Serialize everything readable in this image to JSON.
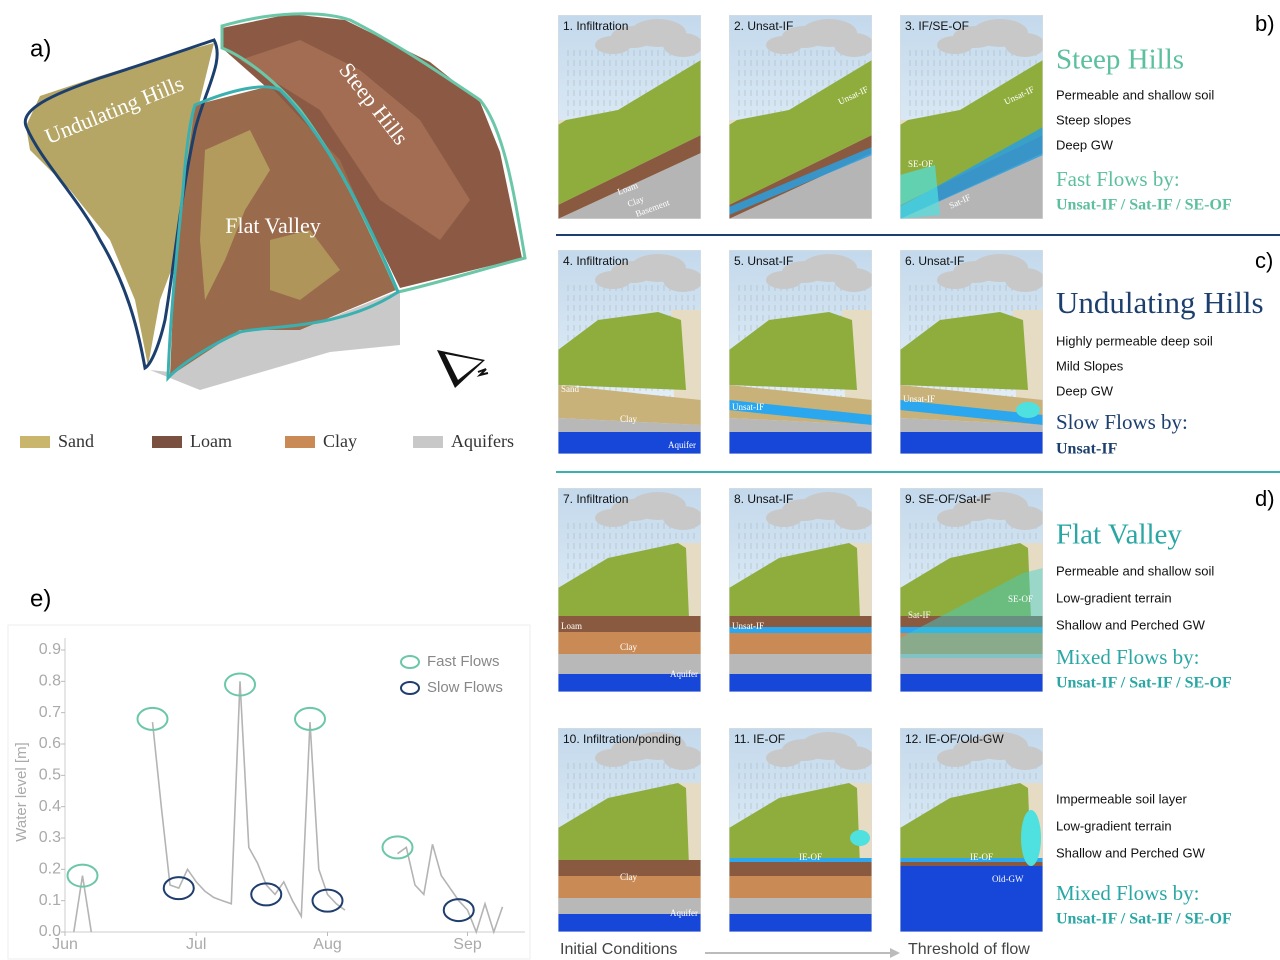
{
  "panel_a": {
    "label": "a)",
    "regions": {
      "undulating": "Undulating Hills",
      "steep": "Steep Hills",
      "valley": "Flat Valley"
    },
    "legend": [
      {
        "name": "Sand",
        "color": "#c9b56c"
      },
      {
        "name": "Loam",
        "color": "#7a5140"
      },
      {
        "name": "Clay",
        "color": "#c98a55"
      },
      {
        "name": "Aquifers",
        "color": "#c8c8c8"
      }
    ]
  },
  "rows": [
    {
      "label": "b)",
      "title": "Steep Hills",
      "color": "#5cbf9f",
      "properties": [
        "Permeable and shallow soil",
        "Steep slopes",
        "Deep GW"
      ],
      "flows_title": "Fast Flows by:",
      "flows": "Unsat-IF / Sat-IF / SE-OF",
      "panels": [
        {
          "title": "1. Infiltration",
          "labels": [
            "Loam",
            "Clay",
            "Basement"
          ]
        },
        {
          "title": "2. Unsat-IF",
          "labels": [
            "Unsat-IF"
          ]
        },
        {
          "title": "3. IF/SE-OF",
          "labels": [
            "SE-OF",
            "Unsat-IF",
            "Sat-IF"
          ]
        }
      ]
    },
    {
      "label": "c)",
      "title": "Undulating Hills",
      "color": "#1d3f6e",
      "properties": [
        "Highly permeable deep soil",
        "Mild Slopes",
        "Deep GW"
      ],
      "flows_title": "Slow Flows by:",
      "flows": "Unsat-IF",
      "panels": [
        {
          "title": "4. Infiltration",
          "labels": [
            "Sand",
            "Clay",
            "Aquifer"
          ]
        },
        {
          "title": "5. Unsat-IF",
          "labels": [
            "Unsat-IF"
          ]
        },
        {
          "title": "6. Unsat-IF",
          "labels": [
            "Unsat-IF"
          ]
        }
      ]
    },
    {
      "label": "d)",
      "title": "Flat Valley",
      "color": "#2aa7a5",
      "properties": [
        "Permeable and shallow soil",
        "Low-gradient terrain",
        "Shallow and Perched GW"
      ],
      "flows_title": "Mixed Flows by:",
      "flows": "Unsat-IF / Sat-IF / SE-OF",
      "panels": [
        {
          "title": "7. Infiltration",
          "labels": [
            "Loam",
            "Clay",
            "Aquifer"
          ]
        },
        {
          "title": "8. Unsat-IF",
          "labels": [
            "Unsat-IF"
          ]
        },
        {
          "title": "9. SE-OF/Sat-IF",
          "labels": [
            "Sat-IF",
            "SE-OF"
          ]
        }
      ]
    },
    {
      "color": "#2aa7a5",
      "properties": [
        "Impermeable soil layer",
        "Low-gradient terrain",
        "Shallow and Perched GW"
      ],
      "flows_title": "Mixed Flows by:",
      "flows": "Unsat-IF / Sat-IF / SE-OF",
      "panels": [
        {
          "title": "10. Infiltration/ponding",
          "labels": [
            "Clay",
            "Aquifer"
          ]
        },
        {
          "title": "11. IE-OF",
          "labels": [
            "IE-OF"
          ]
        },
        {
          "title": "12. IE-OF/Old-GW",
          "labels": [
            "IE-OF",
            "Old-GW"
          ]
        }
      ]
    }
  ],
  "progression": {
    "start": "Initial Conditions",
    "end": "Threshold of flow"
  },
  "chart_data": {
    "type": "line",
    "panel_label": "e)",
    "y_label": "Water level [m]",
    "color": "#b4b4b4",
    "categories": [
      "Jun",
      null,
      null,
      null,
      null,
      null,
      null,
      null,
      null,
      null,
      null,
      null,
      null,
      null,
      null,
      "Jul",
      null,
      null,
      null,
      null,
      null,
      null,
      null,
      null,
      null,
      null,
      null,
      null,
      null,
      null,
      "Aug",
      null,
      null,
      null,
      null,
      null,
      null,
      null,
      null,
      null,
      null,
      null,
      null,
      null,
      null,
      null,
      "Sep",
      null,
      null,
      null,
      null,
      null,
      null
    ],
    "values": [
      null,
      0,
      0.18,
      0,
      null,
      null,
      null,
      null,
      null,
      null,
      0.67,
      0.4,
      0.15,
      0.14,
      0.2,
      0.16,
      0.13,
      0.11,
      0.1,
      0.09,
      0.8,
      0.27,
      0.22,
      0.15,
      0.12,
      0.16,
      0.1,
      0.05,
      0.67,
      0.2,
      0.12,
      0.09,
      0.07,
      null,
      null,
      null,
      null,
      null,
      0.25,
      0.27,
      0.15,
      0.12,
      0.28,
      0.18,
      0.14,
      0.1,
      0.07,
      0,
      0.09,
      0,
      0.08,
      null,
      null
    ],
    "series": [
      {
        "name": "Fast Flows",
        "color": "#6cc7a8",
        "values": [
          null,
          null,
          0.18,
          null,
          null,
          null,
          null,
          null,
          null,
          null,
          0.68,
          null,
          null,
          null,
          null,
          null,
          null,
          null,
          null,
          null,
          0.79,
          null,
          null,
          null,
          null,
          null,
          null,
          null,
          0.68,
          null,
          null,
          null,
          null,
          null,
          null,
          null,
          null,
          null,
          0.27,
          null,
          null,
          null,
          null,
          null,
          null,
          null,
          null,
          null,
          null,
          null,
          null,
          null,
          null
        ]
      },
      {
        "name": "Slow Flows",
        "color": "#1f3e6e",
        "values": [
          null,
          null,
          null,
          null,
          null,
          null,
          null,
          null,
          null,
          null,
          null,
          null,
          null,
          0.14,
          null,
          null,
          null,
          null,
          null,
          null,
          null,
          null,
          null,
          0.12,
          null,
          null,
          null,
          null,
          null,
          null,
          0.1,
          null,
          null,
          null,
          null,
          null,
          null,
          null,
          null,
          null,
          null,
          null,
          null,
          null,
          null,
          0.07,
          null,
          null,
          null,
          null,
          null,
          null,
          null
        ]
      }
    ],
    "ylim": [
      0,
      0.9
    ],
    "yticks": [
      {
        "value": 0,
        "label": "0.0"
      },
      0.1,
      0.2,
      0.3,
      0.4,
      0.5,
      0.6,
      0.7,
      0.8,
      0.9
    ]
  }
}
